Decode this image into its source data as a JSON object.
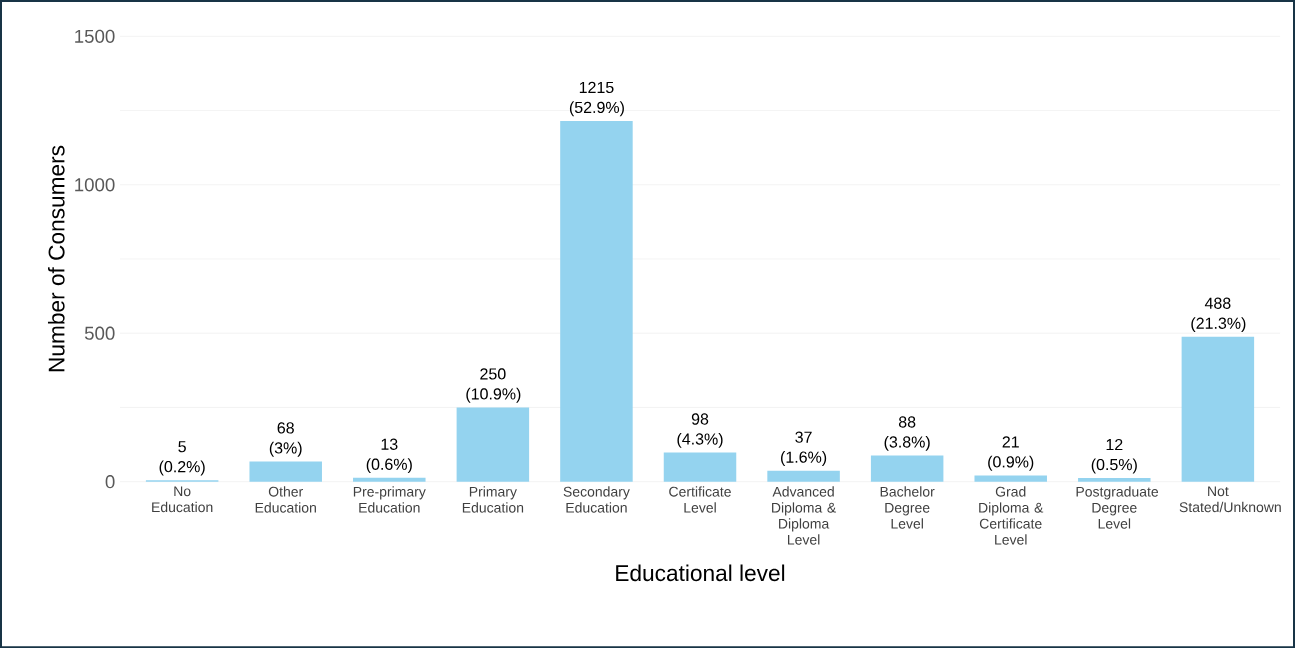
{
  "chart_data": {
    "type": "bar",
    "xlabel": "Educational level",
    "ylabel": "Number of Consumers",
    "categories": [
      "No Education",
      "Other Education",
      "Pre-primary Education",
      "Primary Education",
      "Secondary Education",
      "Certificate Level",
      "Advanced Diploma & Diploma Level",
      "Bachelor Degree Level",
      "Grad Diploma & Certificate Level",
      "Postgraduate Degree Level",
      "Not Stated/Unknown"
    ],
    "values": [
      5,
      68,
      13,
      250,
      1215,
      98,
      37,
      88,
      21,
      12,
      488
    ],
    "value_labels": [
      "5 (0.2%)",
      "68 (3%)",
      "13 (0.6%)",
      "250 (10.9%)",
      "1215 (52.9%)",
      "98 (4.3%)",
      "37 (1.6%)",
      "88 (3.8%)",
      "21 (0.9%)",
      "12 (0.5%)",
      "488 (21.3%)"
    ],
    "color": "#94d3ef",
    "ylim": [
      0,
      1500
    ],
    "yticks": [
      0,
      {
        "value": 250,
        "label": null
      },
      500,
      {
        "value": 750,
        "label": null
      },
      1000,
      {
        "value": 1250,
        "label": null
      },
      1500
    ],
    "grid": "y"
  }
}
